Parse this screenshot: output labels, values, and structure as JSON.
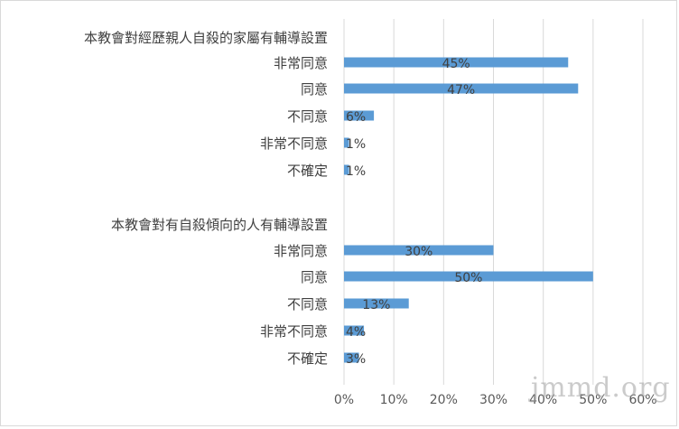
{
  "chart_data": {
    "type": "bar",
    "orientation": "horizontal",
    "x_ticks": [
      "0%",
      "10%",
      "20%",
      "30%",
      "40%",
      "50%",
      "60%"
    ],
    "xlim": [
      0,
      60
    ],
    "grid": true,
    "legend": "none",
    "bar_color": "#5b9bd5",
    "groups": [
      {
        "heading": "本教會對經歷親人自殺的家屬有輔導設置",
        "categories": [
          "非常同意",
          "同意",
          "不同意",
          "非常不同意",
          "不確定"
        ],
        "values": [
          45,
          47,
          6,
          1,
          1
        ],
        "labels": [
          "45%",
          "47%",
          "6%",
          "1%",
          "1%"
        ]
      },
      {
        "heading": "本教會對有自殺傾向的人有輔導設置",
        "categories": [
          "非常同意",
          "同意",
          "不同意",
          "非常不同意",
          "不確定"
        ],
        "values": [
          30,
          50,
          13,
          4,
          3
        ],
        "labels": [
          "30%",
          "50%",
          "13%",
          "4%",
          "3%"
        ]
      }
    ]
  },
  "watermark": "jmmd.org"
}
